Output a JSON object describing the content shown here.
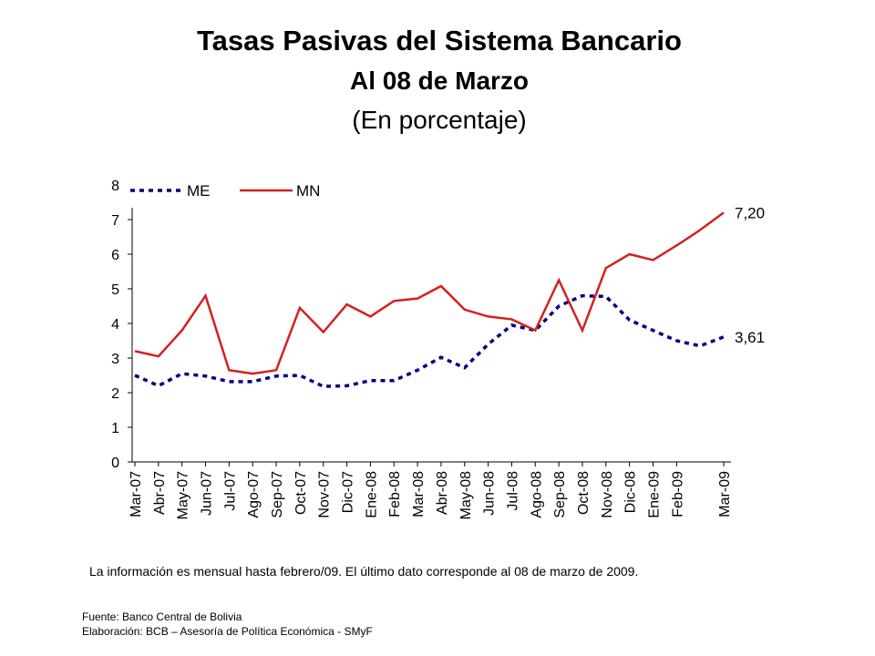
{
  "chart_data": {
    "type": "line",
    "title": "Tasas Pasivas del Sistema Bancario",
    "subtitle": "Al 08 de Marzo",
    "unit_note": "(En porcentaje)",
    "categories": [
      "Mar-07",
      "Abr-07",
      "May-07",
      "Jun-07",
      "Jul-07",
      "Ago-07",
      "Sep-07",
      "Oct-07",
      "Nov-07",
      "Dic-07",
      "Ene-08",
      "Feb-08",
      "Mar-08",
      "Abr-08",
      "May-08",
      "Jun-08",
      "Jul-08",
      "Ago-08",
      "Sep-08",
      "Oct-08",
      "Nov-08",
      "Dic-08",
      "Ene-09",
      "Feb-09",
      null,
      "Mar-09"
    ],
    "series": [
      {
        "name": "ME",
        "color": "#000080",
        "dashed": true,
        "values": [
          2.5,
          2.2,
          2.55,
          2.48,
          2.32,
          2.32,
          2.48,
          2.5,
          2.18,
          2.2,
          2.35,
          2.35,
          2.65,
          3.02,
          2.72,
          3.4,
          3.95,
          3.8,
          4.5,
          4.8,
          4.78,
          4.1,
          3.8,
          3.5,
          3.35,
          3.61
        ],
        "value_labels": [
          null,
          null,
          null,
          null,
          null,
          null,
          null,
          null,
          null,
          null,
          null,
          null,
          null,
          null,
          null,
          null,
          null,
          null,
          null,
          null,
          null,
          null,
          null,
          null,
          null,
          "3,61"
        ]
      },
      {
        "name": "MN",
        "color": "#d42020",
        "dashed": false,
        "values": [
          3.2,
          3.05,
          3.8,
          4.8,
          2.65,
          2.55,
          2.65,
          4.45,
          3.75,
          4.55,
          4.2,
          4.65,
          4.72,
          5.08,
          4.4,
          4.2,
          4.12,
          3.8,
          5.25,
          3.8,
          5.6,
          6.0,
          5.83,
          6.25,
          6.7,
          7.2
        ],
        "value_labels": [
          null,
          null,
          null,
          null,
          null,
          null,
          null,
          null,
          null,
          null,
          null,
          null,
          null,
          null,
          null,
          null,
          null,
          null,
          null,
          null,
          null,
          null,
          null,
          null,
          null,
          "7,20"
        ]
      }
    ],
    "ylim": [
      0,
      8
    ],
    "yticks": [
      0,
      1,
      2,
      3,
      4,
      5,
      6,
      7,
      8
    ],
    "note": "La información es mensual hasta febrero/09. El último dato corresponde al 08 de marzo de 2009.",
    "source": "Fuente: Banco Central de Bolivia",
    "credit": "Elaboración: BCB – Asesoría de Política Económica - SMyF"
  }
}
